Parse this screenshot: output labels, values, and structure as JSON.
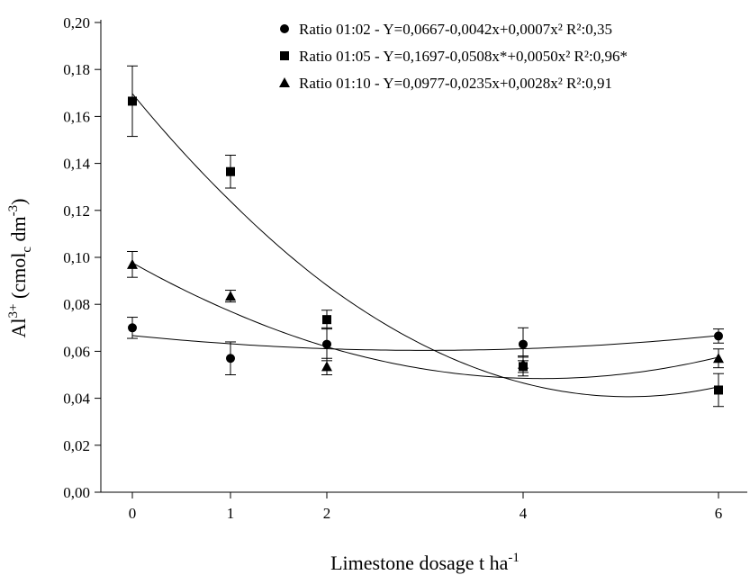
{
  "chart_data": {
    "type": "scatter",
    "title": "",
    "xlabel": "Limestone dosage t ha",
    "xlabel_sup": "-1",
    "ylabel_parts": {
      "base": "Al",
      "sup": "3+",
      "mid": " (cmol",
      "sub": "c",
      "mid2": " dm",
      "sup2": "-3",
      "end": ")"
    },
    "x_ticks": [
      0,
      1,
      2,
      4,
      6
    ],
    "x_tick_labels": [
      "0",
      "1",
      "2",
      "4",
      "6"
    ],
    "y_ticks": [
      0,
      0.02,
      0.04,
      0.06,
      0.08,
      0.1,
      0.12,
      0.14,
      0.16,
      0.18,
      0.2
    ],
    "y_tick_labels": [
      "0,00",
      "0,02",
      "0,04",
      "0,06",
      "0,08",
      "0,10",
      "0,12",
      "0,14",
      "0,16",
      "0,18",
      "0,20"
    ],
    "ylim": [
      0,
      0.2
    ],
    "xlim": [
      0,
      6
    ],
    "grid": false,
    "legend_position": "top-right",
    "series": [
      {
        "name": "Ratio 01:02",
        "legend_label": "Ratio  01:02 - Y=0,0667-0,0042x+0,0007x² R²:0,35",
        "marker": "circle",
        "x": [
          0,
          1,
          2,
          4,
          6
        ],
        "y": [
          0.07,
          0.057,
          0.063,
          0.063,
          0.0665
        ],
        "err": [
          0.0045,
          0.007,
          0.007,
          0.007,
          0.003
        ],
        "fit": [
          0.0667,
          -0.0042,
          0.0007
        ]
      },
      {
        "name": "Ratio 01:05",
        "legend_label": "Ratio  01:05 - Y=0,1697-0,0508x*+0,0050x² R²:0,96*",
        "marker": "square",
        "x": [
          0,
          1,
          2,
          4,
          6
        ],
        "y": [
          0.1665,
          0.1365,
          0.0735,
          0.0535,
          0.0435
        ],
        "err": [
          0.015,
          0.007,
          0.004,
          0.004,
          0.007
        ],
        "fit": [
          0.1697,
          -0.0508,
          0.005
        ]
      },
      {
        "name": "Ratio 01:10",
        "legend_label": "Ratio  01:10 - Y=0,0977-0,0235x+0,0028x² R²:0,91",
        "marker": "triangle",
        "x": [
          0,
          1,
          2,
          4,
          6
        ],
        "y": [
          0.097,
          0.0835,
          0.0535,
          0.0545,
          0.057
        ],
        "err": [
          0.0055,
          0.0025,
          0.0035,
          0.0035,
          0.004
        ],
        "fit": [
          0.0977,
          -0.0235,
          0.0028
        ]
      }
    ]
  }
}
